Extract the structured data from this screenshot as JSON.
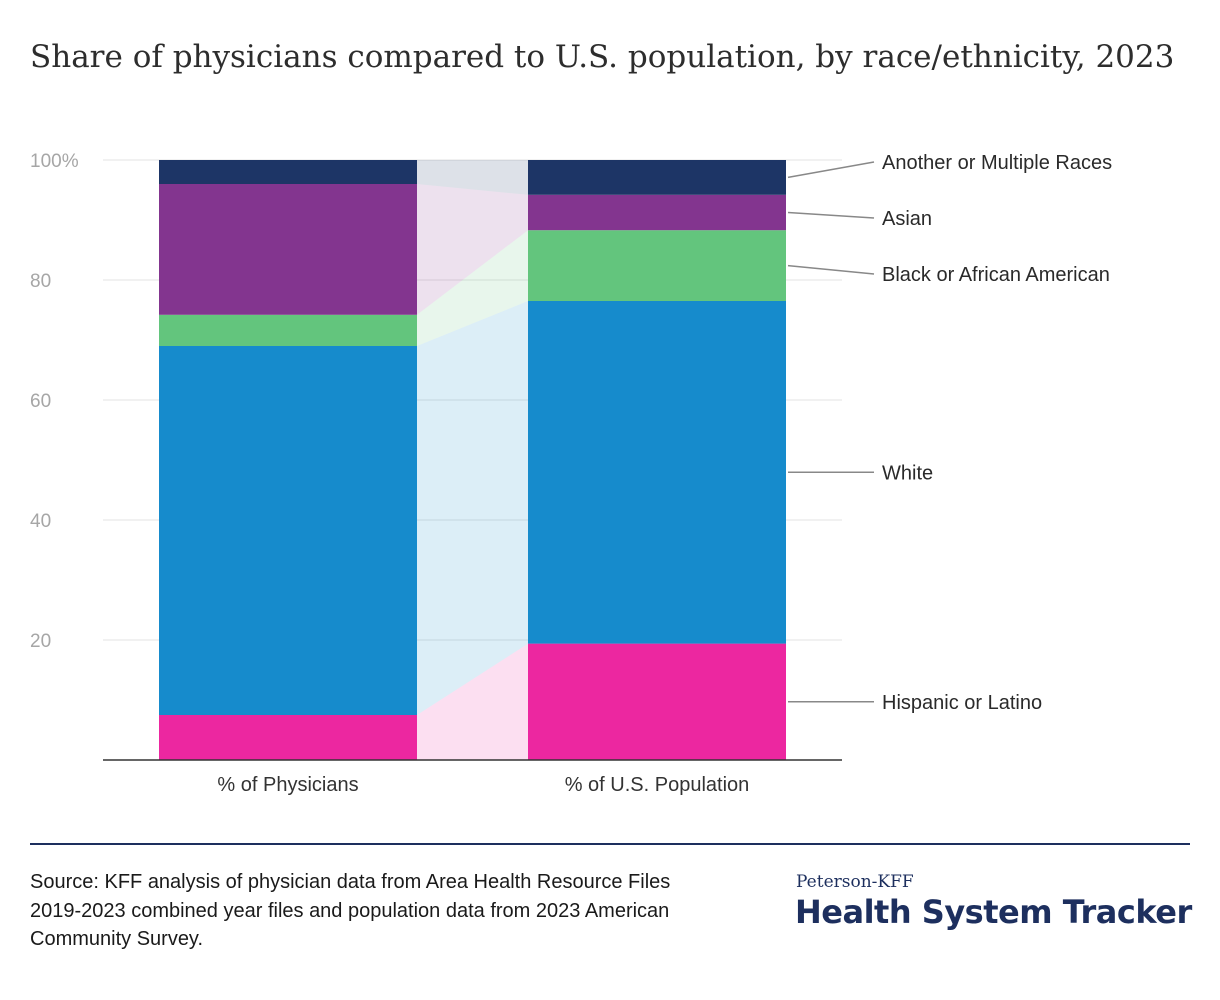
{
  "chart_data": {
    "type": "bar",
    "stacked": true,
    "title": "Share of physicians compared to U.S. population, by race/ethnicity, 2023",
    "categories": [
      "% of Physicians",
      "% of U.S. Population"
    ],
    "series": [
      {
        "name": "Hispanic or Latino",
        "color": "#ec27a0",
        "values": [
          7.5,
          19.4
        ]
      },
      {
        "name": "White",
        "color": "#168bcc",
        "values": [
          61.5,
          57.1
        ]
      },
      {
        "name": "Black or African American",
        "color": "#63c57d",
        "values": [
          5.2,
          11.8
        ]
      },
      {
        "name": "Asian",
        "color": "#83358f",
        "values": [
          21.8,
          5.9
        ]
      },
      {
        "name": "Another or Multiple Races",
        "color": "#1d3566",
        "values": [
          4.0,
          5.8
        ]
      }
    ],
    "ylim": [
      0,
      100
    ],
    "yticks": [
      20,
      40,
      60,
      80,
      100
    ],
    "ytick_labels": [
      "20",
      "40",
      "60",
      "80",
      "100%"
    ],
    "legend_position": "right",
    "xlabel": "",
    "ylabel": ""
  },
  "footer": {
    "source": "Source: KFF analysis of physician data from Area Health Resource Files 2019-2023 combined year files and population data from 2023 American Community Survey.",
    "brand_top": "Peterson-KFF",
    "brand_main": "Health System Tracker",
    "divider_color": "#1d2f5e"
  }
}
